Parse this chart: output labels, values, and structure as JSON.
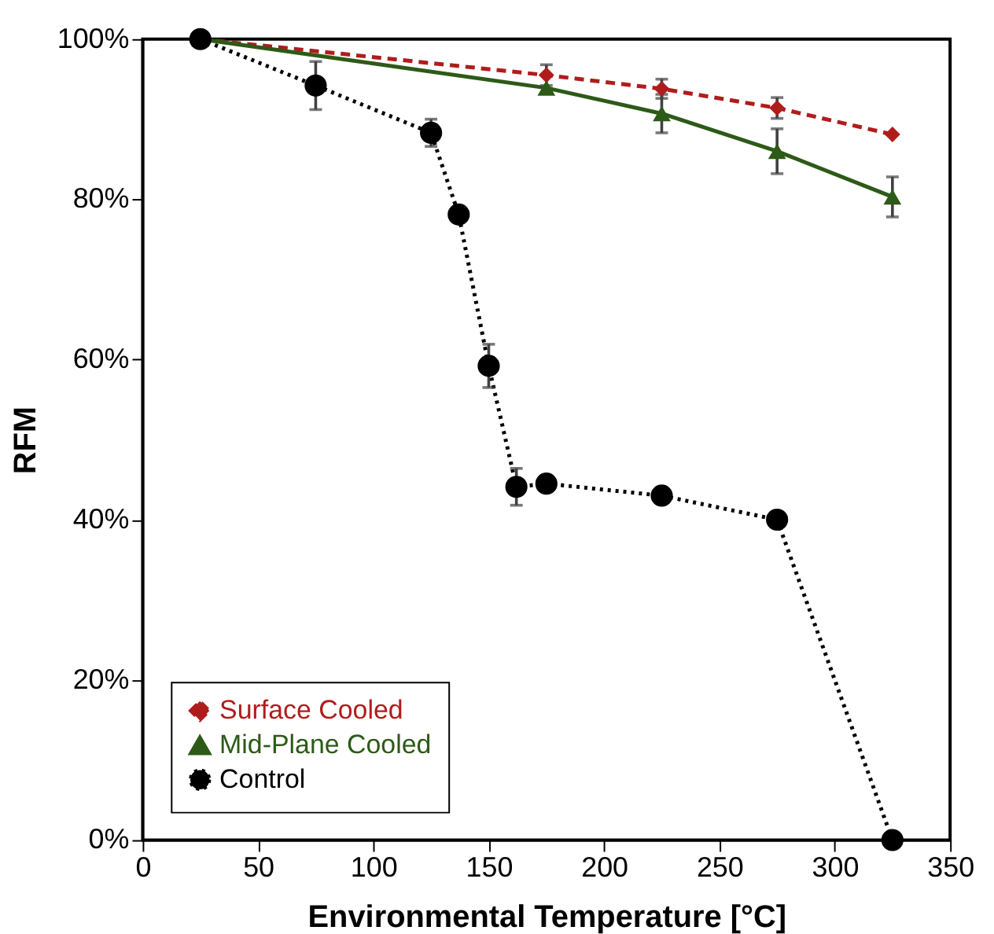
{
  "chart_data": {
    "type": "line",
    "xlabel": "Environmental Temperature [°C]",
    "ylabel": "RFM",
    "xlim": [
      0,
      350
    ],
    "xticks": [
      0,
      50,
      100,
      150,
      200,
      250,
      300,
      350
    ],
    "ylim": [
      0,
      100
    ],
    "yticks": [
      {
        "value": 0,
        "label": "0%"
      },
      {
        "value": 20,
        "label": "20%"
      },
      {
        "value": 40,
        "label": "40%"
      },
      {
        "value": 60,
        "label": "60%"
      },
      {
        "value": 80,
        "label": "80%"
      },
      {
        "value": 100,
        "label": "100%"
      }
    ],
    "legend": "bottom left",
    "grid": false,
    "series": [
      {
        "name": "Surface Cooled",
        "color": "#b01c1c",
        "marker": "diamond",
        "line_style": "dashed",
        "x": [
          25,
          175,
          225,
          275,
          325
        ],
        "values": [
          100,
          95.5,
          93.8,
          91.4,
          88.1
        ],
        "errors": [
          null,
          1.3,
          1.2,
          1.3,
          null
        ]
      },
      {
        "name": "Mid-Plane Cooled",
        "color": "#2d5a17",
        "marker": "triangle",
        "line_style": "solid",
        "x": [
          25,
          175,
          225,
          275,
          325
        ],
        "values": [
          100,
          93.9,
          90.7,
          86.0,
          80.3
        ],
        "errors": [
          null,
          null,
          2.4,
          2.8,
          2.5
        ]
      },
      {
        "name": "Control",
        "color": "#000000",
        "marker": "circle",
        "line_style": "dotted",
        "x": [
          25,
          75,
          125,
          137,
          150,
          162,
          175,
          225,
          275,
          325
        ],
        "values": [
          100,
          94.2,
          88.3,
          78.1,
          59.2,
          44.1,
          44.5,
          43.0,
          40.0,
          0
        ],
        "errors": [
          null,
          3.0,
          1.7,
          null,
          2.7,
          2.3,
          null,
          null,
          null,
          null
        ]
      }
    ]
  }
}
